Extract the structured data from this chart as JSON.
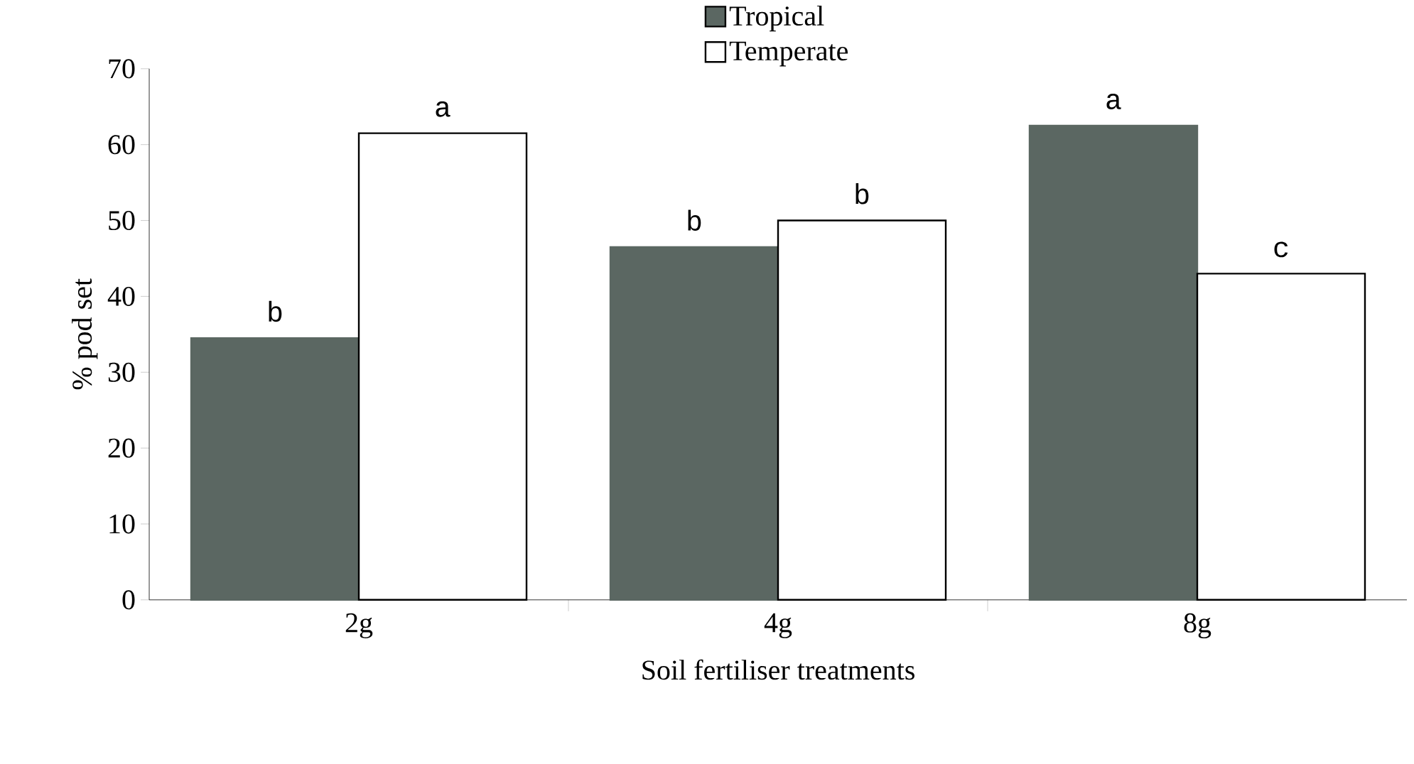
{
  "chart_data": {
    "type": "bar",
    "xlabel": "Soil fertiliser treatments",
    "ylabel": "% pod set",
    "categories": [
      "2g",
      "4g",
      "8g"
    ],
    "series": [
      {
        "name": "Tropical",
        "color": "#5b6762",
        "values": [
          34.5,
          46.5,
          62.5
        ],
        "value_labels": [
          "b",
          "b",
          "a"
        ]
      },
      {
        "name": "Temperate",
        "color": "#ffffff",
        "values": [
          61.5,
          50,
          43
        ],
        "value_labels": [
          "a",
          "b",
          "c"
        ]
      }
    ],
    "ylim": [
      0,
      70
    ],
    "yticks": [
      0,
      10,
      20,
      30,
      40,
      50,
      60,
      70
    ],
    "grid": false,
    "legend": "top"
  }
}
